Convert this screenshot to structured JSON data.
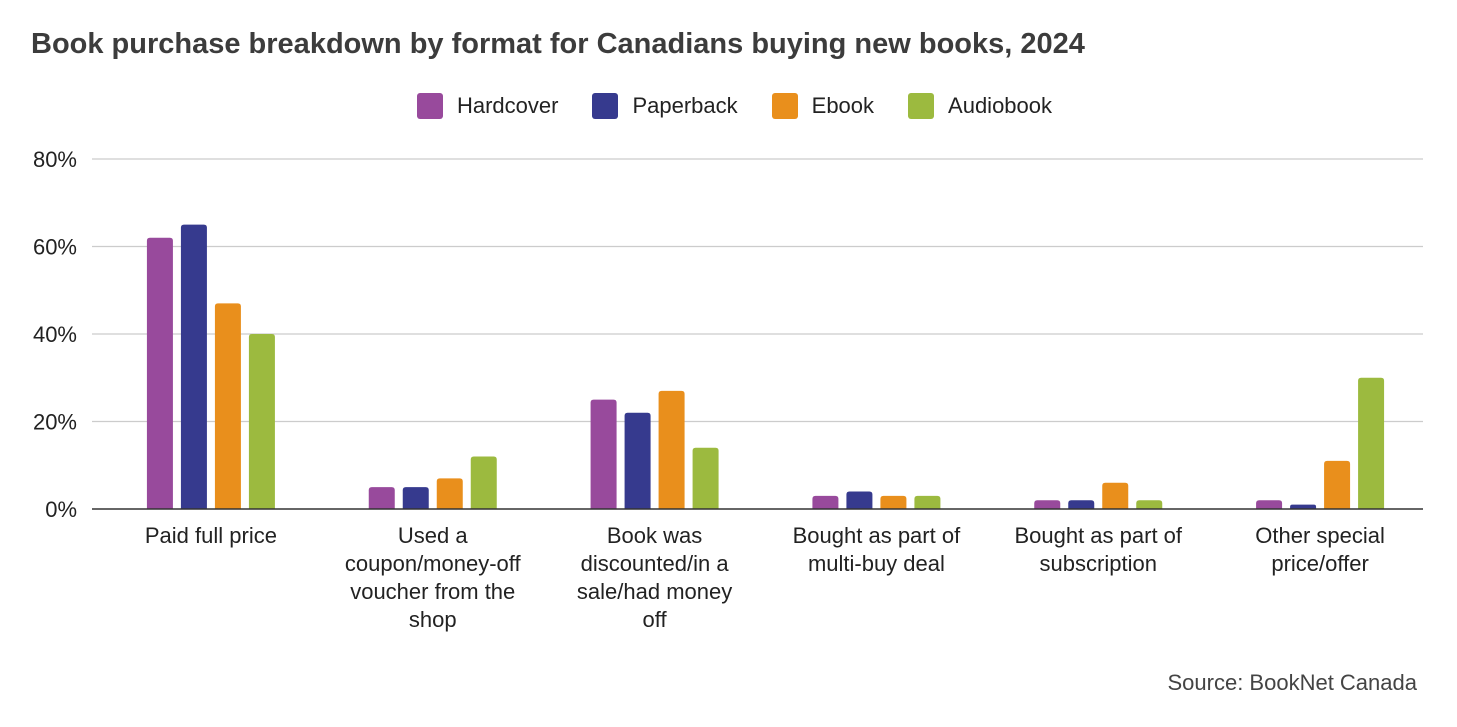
{
  "chart_data": {
    "type": "bar",
    "title": "Book purchase breakdown by format for Canadians buying new books, 2024",
    "xlabel": "",
    "ylabel": "",
    "ylim": [
      0,
      80
    ],
    "yticks": [
      "0%",
      "20%",
      "40%",
      "60%",
      "80%"
    ],
    "ytick_values": [
      0,
      20,
      40,
      60,
      80
    ],
    "grid": true,
    "legend_position": "top",
    "categories": [
      [
        "Paid full price"
      ],
      [
        "Used a",
        "coupon/money-off",
        "voucher from the",
        "shop"
      ],
      [
        "Book was",
        "discounted/in a",
        "sale/had money",
        "off"
      ],
      [
        "Bought as part of",
        "multi-buy deal"
      ],
      [
        "Bought as part of",
        "subscription"
      ],
      [
        "Other special",
        "price/offer"
      ]
    ],
    "series": [
      {
        "name": "Hardcover",
        "color": "#984a9c",
        "values": [
          62,
          5,
          25,
          3,
          2,
          2
        ]
      },
      {
        "name": "Paperback",
        "color": "#363a8e",
        "values": [
          65,
          5,
          22,
          4,
          2,
          1
        ]
      },
      {
        "name": "Ebook",
        "color": "#e98f1c",
        "values": [
          47,
          7,
          27,
          3,
          6,
          11
        ]
      },
      {
        "name": "Audiobook",
        "color": "#9cba3f",
        "values": [
          40,
          12,
          14,
          3,
          2,
          30
        ]
      }
    ],
    "source": "Source: BookNet Canada"
  }
}
